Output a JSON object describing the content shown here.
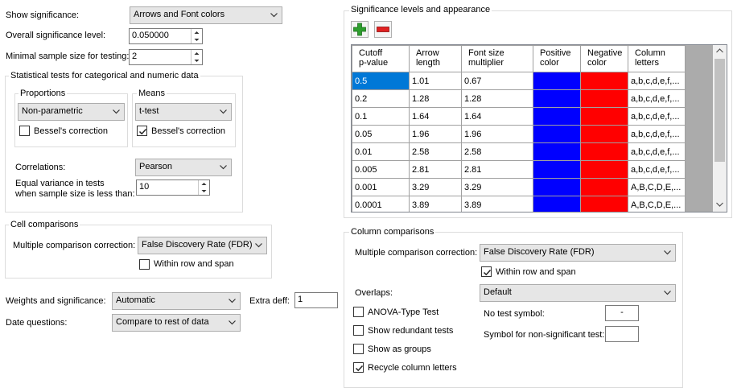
{
  "show_significance": {
    "label": "Show significance:",
    "value": "Arrows and Font colors"
  },
  "overall_level": {
    "label": "Overall significance level:",
    "value": "0.050000"
  },
  "minimal_sample": {
    "label": "Minimal sample size for testing:",
    "value": "2"
  },
  "stat_tests": {
    "title": "Statistical tests for categorical and numeric data",
    "proportions": {
      "title": "Proportions",
      "value": "Non-parametric",
      "bessel_label": "Bessel's correction",
      "bessel_checked": false
    },
    "means": {
      "title": "Means",
      "value": "t-test",
      "bessel_label": "Bessel's correction",
      "bessel_checked": true
    },
    "correlations": {
      "label": "Correlations:",
      "value": "Pearson"
    },
    "equal_variance": {
      "label_line1": "Equal variance in tests",
      "label_line2": "when sample size is less than:",
      "value": "10"
    }
  },
  "cell_comparisons": {
    "title": "Cell comparisons",
    "mcc_label": "Multiple comparison correction:",
    "mcc_value": "False Discovery Rate (FDR)",
    "within_label": "Within row and span",
    "within_checked": false
  },
  "weights": {
    "label": "Weights and significance:",
    "value": "Automatic"
  },
  "extra_deff": {
    "label": "Extra deff:",
    "value": "1"
  },
  "date_questions": {
    "label": "Date questions:",
    "value": "Compare to rest of data"
  },
  "sig_levels": {
    "title": "Significance levels and appearance",
    "headers": [
      [
        "Cutoff",
        "p-value"
      ],
      [
        "Arrow",
        "length"
      ],
      [
        "Font size",
        "multiplier"
      ],
      [
        "Positive",
        "color"
      ],
      [
        "Negative",
        "color"
      ],
      [
        "Column",
        "letters"
      ]
    ],
    "rows": [
      {
        "p": "0.5",
        "arrow": "1.01",
        "font": "0.67",
        "letters": "a,b,c,d,e,f,..."
      },
      {
        "p": "0.2",
        "arrow": "1.28",
        "font": "1.28",
        "letters": "a,b,c,d,e,f,..."
      },
      {
        "p": "0.1",
        "arrow": "1.64",
        "font": "1.64",
        "letters": "a,b,c,d,e,f,..."
      },
      {
        "p": "0.05",
        "arrow": "1.96",
        "font": "1.96",
        "letters": "a,b,c,d,e,f,..."
      },
      {
        "p": "0.01",
        "arrow": "2.58",
        "font": "2.58",
        "letters": "a,b,c,d,e,f,..."
      },
      {
        "p": "0.005",
        "arrow": "2.81",
        "font": "2.81",
        "letters": "a,b,c,d,e,f,..."
      },
      {
        "p": "0.001",
        "arrow": "3.29",
        "font": "3.29",
        "letters": "A,B,C,D,E,..."
      },
      {
        "p": "0.0001",
        "arrow": "3.89",
        "font": "3.89",
        "letters": "A,B,C,D,E,..."
      }
    ],
    "positive_color": "#0000ff",
    "negative_color": "#ff0000",
    "add_icon_color": "#2e9e2e",
    "remove_icon_color": "#e02020"
  },
  "column_comparisons": {
    "title": "Column comparisons",
    "mcc_label": "Multiple comparison correction:",
    "mcc_value": "False Discovery Rate (FDR)",
    "within_label": "Within row and span",
    "within_checked": true,
    "overlaps_label": "Overlaps:",
    "overlaps_value": "Default",
    "anova_label": "ANOVA-Type Test",
    "anova_checked": false,
    "redundant_label": "Show redundant tests",
    "redundant_checked": false,
    "groups_label": "Show as groups",
    "groups_checked": false,
    "recycle_label": "Recycle column letters",
    "recycle_checked": true,
    "no_test_label": "No test symbol:",
    "no_test_value": "-",
    "nonsig_label": "Symbol for non-significant test:",
    "nonsig_value": ""
  }
}
